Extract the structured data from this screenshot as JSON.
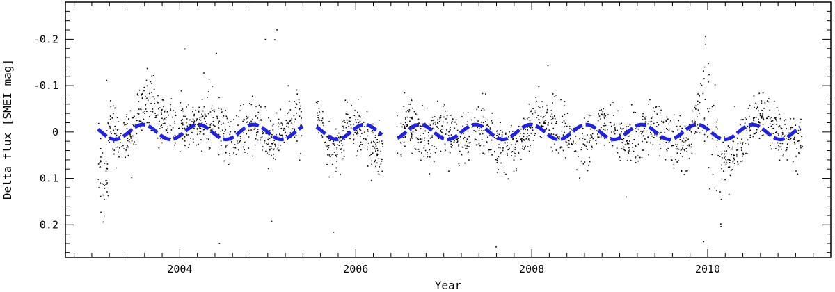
{
  "chart_data": {
    "type": "scatter",
    "xlabel": "Year",
    "ylabel": "Delta flux [SMEI mag]",
    "xlim": [
      2002.7,
      2011.4
    ],
    "ylim": [
      0.27,
      -0.28
    ],
    "y_inverted": true,
    "grid": false,
    "x_ticks": [
      {
        "value": 2004,
        "label": "2004"
      },
      {
        "value": 2006,
        "label": "2006"
      },
      {
        "value": 2008,
        "label": "2008"
      },
      {
        "value": 2010,
        "label": "2010"
      }
    ],
    "y_ticks": [
      {
        "value": -0.2,
        "label": "-0.2"
      },
      {
        "value": -0.1,
        "label": "-0.1"
      },
      {
        "value": 0,
        "label": "0"
      },
      {
        "value": 0.1,
        "label": "0.1"
      },
      {
        "value": 0.2,
        "label": "0.2"
      }
    ],
    "series": [
      {
        "kind": "scatter",
        "color": "#000000",
        "description_points": [
          {
            "x": 2003.1,
            "y": 0.06
          },
          {
            "x": 2003.13,
            "y": 0.12
          },
          {
            "x": 2003.16,
            "y": 0.09
          },
          {
            "x": 2003.2,
            "y": -0.02
          },
          {
            "x": 2003.3,
            "y": 0.01
          },
          {
            "x": 2003.45,
            "y": 0.0
          },
          {
            "x": 2003.6,
            "y": -0.06
          },
          {
            "x": 2003.75,
            "y": -0.04
          },
          {
            "x": 2003.95,
            "y": -0.02
          },
          {
            "x": 2004.2,
            "y": -0.01
          },
          {
            "x": 2004.4,
            "y": -0.03
          },
          {
            "x": 2004.6,
            "y": 0.02
          },
          {
            "x": 2004.8,
            "y": -0.02
          },
          {
            "x": 2005.0,
            "y": 0.03
          },
          {
            "x": 2005.2,
            "y": -0.02
          },
          {
            "x": 2005.35,
            "y": -0.05
          },
          {
            "x": 2005.55,
            "y": -0.03
          },
          {
            "x": 2005.7,
            "y": 0.04
          },
          {
            "x": 2005.9,
            "y": -0.02
          },
          {
            "x": 2006.1,
            "y": 0.02
          },
          {
            "x": 2006.25,
            "y": 0.05
          },
          {
            "x": 2006.4,
            "y": 0.0
          },
          {
            "x": 2006.6,
            "y": -0.02
          },
          {
            "x": 2006.8,
            "y": 0.03
          },
          {
            "x": 2007.0,
            "y": -0.03
          },
          {
            "x": 2007.2,
            "y": 0.03
          },
          {
            "x": 2007.4,
            "y": -0.01
          },
          {
            "x": 2007.6,
            "y": 0.01
          },
          {
            "x": 2007.8,
            "y": 0.03
          },
          {
            "x": 2008.0,
            "y": -0.01
          },
          {
            "x": 2008.2,
            "y": -0.04
          },
          {
            "x": 2008.4,
            "y": 0.0
          },
          {
            "x": 2008.6,
            "y": 0.04
          },
          {
            "x": 2008.8,
            "y": -0.02
          },
          {
            "x": 2009.0,
            "y": 0.01
          },
          {
            "x": 2009.2,
            "y": 0.03
          },
          {
            "x": 2009.4,
            "y": -0.02
          },
          {
            "x": 2009.6,
            "y": 0.01
          },
          {
            "x": 2009.8,
            "y": 0.02
          },
          {
            "x": 2009.95,
            "y": -0.07
          },
          {
            "x": 2010.05,
            "y": -0.03
          },
          {
            "x": 2010.15,
            "y": 0.05
          },
          {
            "x": 2010.3,
            "y": 0.05
          },
          {
            "x": 2010.5,
            "y": -0.01
          },
          {
            "x": 2010.7,
            "y": -0.03
          },
          {
            "x": 2010.9,
            "y": 0.01
          },
          {
            "x": 2011.05,
            "y": 0.02
          }
        ]
      },
      {
        "kind": "model",
        "color": "#1f22e6",
        "amplitude": 0.016,
        "period_years": 0.63,
        "phase_peak_year": 2003.58,
        "x_range": [
          2003.07,
          2011.05
        ],
        "gaps": [
          [
            2005.4,
            2005.55
          ],
          [
            2006.3,
            2006.47
          ]
        ]
      }
    ]
  }
}
